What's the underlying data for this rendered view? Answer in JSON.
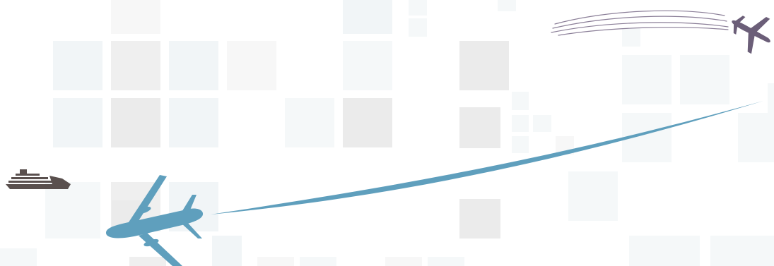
{
  "colors": {
    "plane_large": "#5f9fbd",
    "contrail_large": "#5f9fbd",
    "plane_small": "#6b5e78",
    "contrails_small": "#8b7f98",
    "ship": "#5a504e"
  },
  "icons": [
    "airplane-large-icon",
    "airplane-small-icon",
    "ship-icon"
  ]
}
